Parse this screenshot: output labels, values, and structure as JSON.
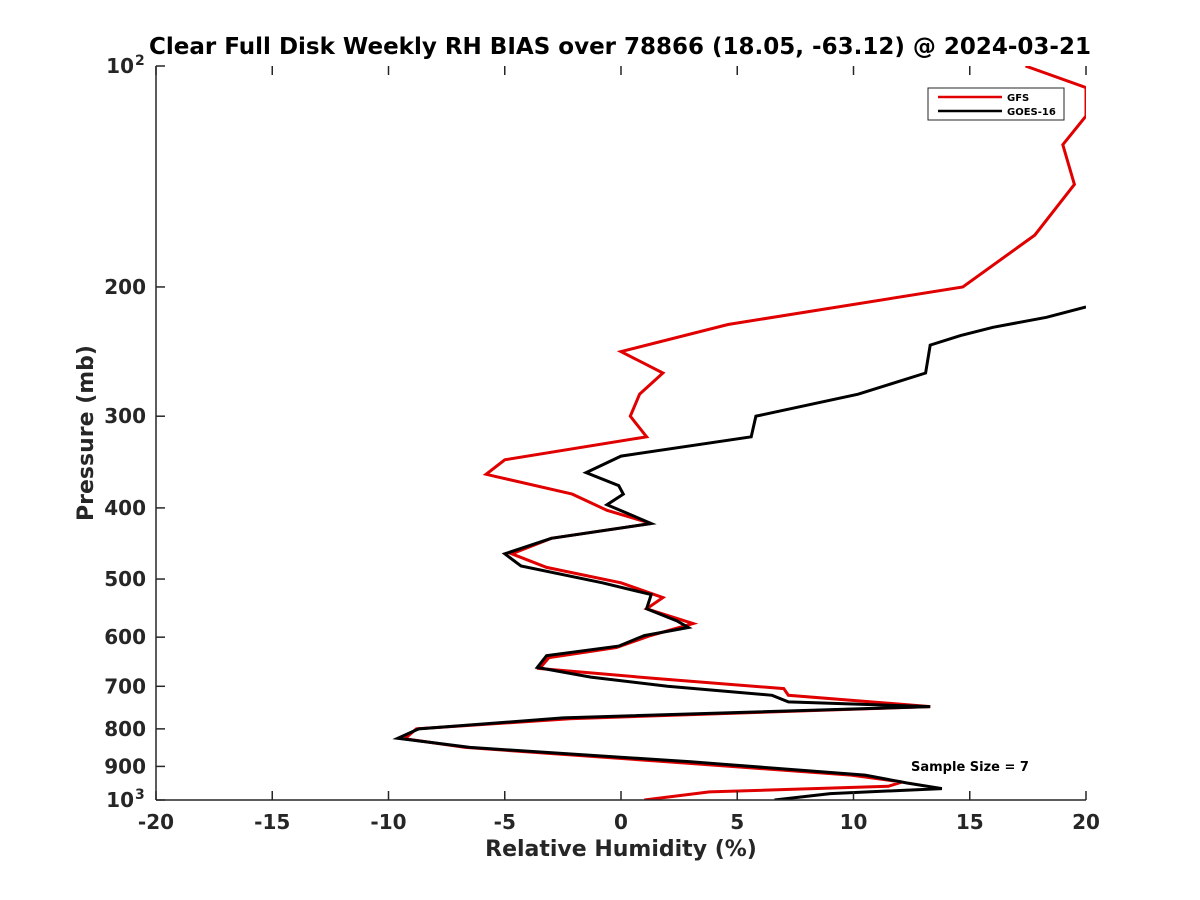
{
  "chart_data": {
    "type": "line",
    "title": "Clear Full Disk Weekly RH BIAS over 78866 (18.05, -63.12) @ 2024-03-21",
    "xlabel": "Relative Humidity (%)",
    "ylabel": "Pressure (mb)",
    "xlim": [
      -20,
      20
    ],
    "ylim": [
      100,
      1000
    ],
    "yscale": "log",
    "y_reversed": true,
    "x_ticks": [
      -20,
      -15,
      -10,
      -5,
      0,
      5,
      10,
      15,
      20
    ],
    "x_tick_labels": [
      "-20",
      "-15",
      "-10",
      "-5",
      "0",
      "5",
      "10",
      "15",
      "20"
    ],
    "y_ticks": [
      {
        "value": 100,
        "base": "10",
        "exp": "2"
      },
      {
        "value": 200,
        "base": "200",
        "exp": ""
      },
      {
        "value": 300,
        "base": "300",
        "exp": ""
      },
      {
        "value": 400,
        "base": "400",
        "exp": ""
      },
      {
        "value": 500,
        "base": "500",
        "exp": ""
      },
      {
        "value": 600,
        "base": "600",
        "exp": ""
      },
      {
        "value": 700,
        "base": "700",
        "exp": ""
      },
      {
        "value": 800,
        "base": "800",
        "exp": ""
      },
      {
        "value": 900,
        "base": "900",
        "exp": ""
      },
      {
        "value": 1000,
        "base": "10",
        "exp": "3"
      }
    ],
    "grid": false,
    "legend_position": "top-right",
    "annotation": "Sample Size = 7",
    "series": [
      {
        "name": "GFS",
        "color": "#e00000",
        "points": [
          [
            17.4,
            100
          ],
          [
            20.0,
            107
          ],
          [
            20.0,
            117
          ],
          [
            19.0,
            128
          ],
          [
            19.5,
            145
          ],
          [
            17.8,
            170
          ],
          [
            14.7,
            200
          ],
          [
            4.6,
            225
          ],
          [
            0.0,
            245
          ],
          [
            1.8,
            262
          ],
          [
            0.8,
            280
          ],
          [
            0.4,
            300
          ],
          [
            1.1,
            320
          ],
          [
            -5.0,
            344
          ],
          [
            -5.8,
            360
          ],
          [
            -2.1,
            383
          ],
          [
            -0.6,
            403
          ],
          [
            1.3,
            420
          ],
          [
            -3.0,
            440
          ],
          [
            -4.7,
            462
          ],
          [
            -3.2,
            482
          ],
          [
            0.0,
            506
          ],
          [
            1.8,
            530
          ],
          [
            1.1,
            549
          ],
          [
            3.1,
            575
          ],
          [
            1.2,
            598
          ],
          [
            -0.2,
            620
          ],
          [
            -3.1,
            640
          ],
          [
            -3.5,
            662
          ],
          [
            1.5,
            683
          ],
          [
            7.0,
            705
          ],
          [
            7.2,
            720
          ],
          [
            13.3,
            746
          ],
          [
            -2.2,
            775
          ],
          [
            -8.8,
            800
          ],
          [
            -9.3,
            825
          ],
          [
            -6.7,
            848
          ],
          [
            3.1,
            892
          ],
          [
            9.9,
            925
          ],
          [
            12.1,
            945
          ],
          [
            11.5,
            958
          ],
          [
            3.8,
            975
          ],
          [
            1.0,
            1000
          ]
        ]
      },
      {
        "name": "GOES-16",
        "color": "#000000",
        "points": [
          [
            20.0,
            213
          ],
          [
            18.3,
            220
          ],
          [
            16.0,
            227
          ],
          [
            14.6,
            233
          ],
          [
            13.3,
            240
          ],
          [
            13.1,
            262
          ],
          [
            10.2,
            280
          ],
          [
            5.8,
            300
          ],
          [
            5.6,
            320
          ],
          [
            0.0,
            340
          ],
          [
            -1.5,
            358
          ],
          [
            -0.1,
            373
          ],
          [
            0.1,
            383
          ],
          [
            -0.6,
            396
          ],
          [
            1.3,
            420
          ],
          [
            -3.0,
            440
          ],
          [
            -5.0,
            462
          ],
          [
            -4.3,
            480
          ],
          [
            -0.8,
            506
          ],
          [
            1.3,
            525
          ],
          [
            1.1,
            549
          ],
          [
            2.4,
            570
          ],
          [
            2.9,
            582
          ],
          [
            1.0,
            597
          ],
          [
            -0.1,
            617
          ],
          [
            -3.2,
            636
          ],
          [
            -3.6,
            660
          ],
          [
            -1.3,
            680
          ],
          [
            2.0,
            700
          ],
          [
            6.5,
            720
          ],
          [
            7.2,
            735
          ],
          [
            13.3,
            746
          ],
          [
            -2.5,
            773
          ],
          [
            -8.7,
            800
          ],
          [
            -9.6,
            824
          ],
          [
            -6.5,
            848
          ],
          [
            3.0,
            887
          ],
          [
            10.5,
            925
          ],
          [
            12.3,
            948
          ],
          [
            13.8,
            965
          ],
          [
            9.0,
            980
          ],
          [
            6.6,
            1000
          ]
        ]
      }
    ]
  }
}
